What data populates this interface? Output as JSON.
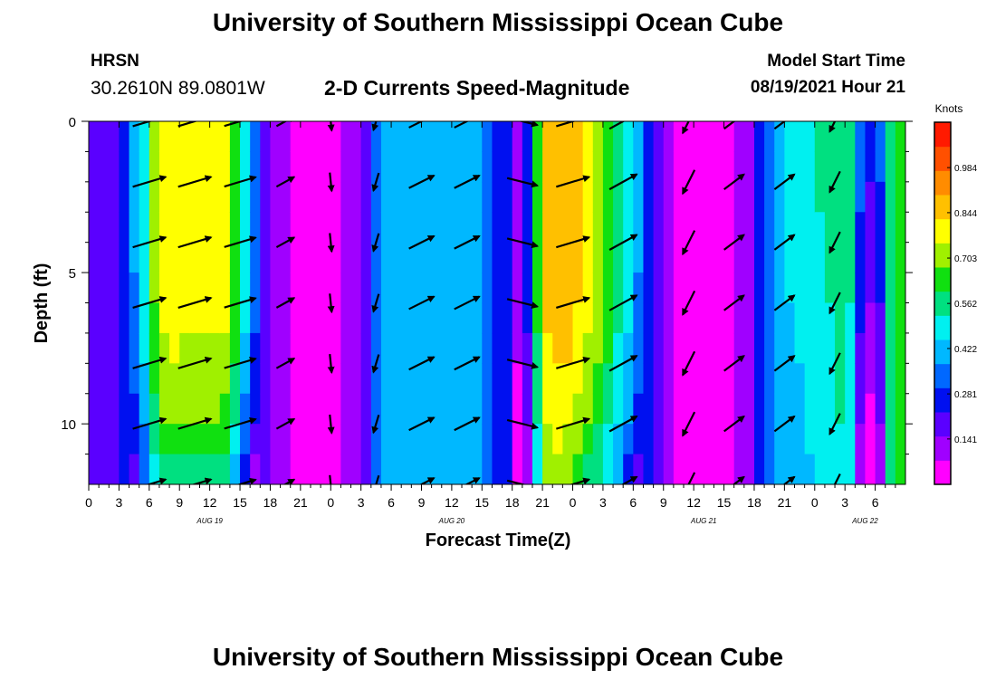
{
  "header": {
    "title": "University of Southern Mississippi Ocean Cube",
    "station": "HRSN",
    "coords": "30.2610N  89.0801W",
    "subtitle": "2-D Currents Speed-Magnitude",
    "model_start_label": "Model Start Time",
    "model_start_value": "08/19/2021 Hour 21"
  },
  "footer": {
    "title": "University of Southern Mississippi Ocean Cube"
  },
  "chart_data": {
    "type": "heatmap",
    "title": "2-D Currents Speed-Magnitude",
    "xlabel": "Forecast Time(Z)",
    "ylabel": "Depth (ft)",
    "x_hours_range": [
      0,
      81
    ],
    "x_origin": "Aug 19 00Z",
    "x_tick_labels": [
      "0",
      "3",
      "6",
      "9",
      "12",
      "15",
      "18",
      "21",
      "0",
      "3",
      "6",
      "9",
      "12",
      "15",
      "18",
      "21",
      "0",
      "3",
      "6",
      "9",
      "12",
      "15",
      "18",
      "21",
      "0",
      "3",
      "6"
    ],
    "x_day_labels": [
      {
        "text": "AUG 19",
        "hour": 12
      },
      {
        "text": "AUG 20",
        "hour": 36
      },
      {
        "text": "AUG 21",
        "hour": 61
      },
      {
        "text": "AUG 22",
        "hour": 77
      }
    ],
    "y_range": [
      0,
      12
    ],
    "y_ticks": [
      0,
      5,
      10
    ],
    "y_tick_labels": [
      "0",
      "5",
      "10"
    ],
    "colorbar": {
      "title": "Knots",
      "range": [
        0,
        1.125
      ],
      "tick_values": [
        0.141,
        0.281,
        0.422,
        0.562,
        0.703,
        0.844,
        0.984
      ],
      "tick_labels": [
        "0.141",
        "0.281",
        "0.422",
        "0.562",
        "0.703",
        "0.844",
        "0.984"
      ]
    },
    "speed_profile": {
      "hours": [
        0,
        3,
        5,
        6,
        7,
        8,
        10,
        13,
        14,
        15,
        16,
        17,
        18,
        20,
        21,
        23,
        25,
        27,
        28,
        28.5,
        30,
        33,
        36,
        39,
        40,
        42,
        43,
        44,
        45,
        46,
        47,
        48,
        49,
        51,
        54,
        56,
        57,
        58,
        60,
        63,
        65,
        66,
        67,
        69,
        72,
        75,
        76,
        77,
        78,
        79,
        80,
        81
      ],
      "speeds": [
        0.17,
        0.22,
        0.45,
        0.6,
        0.8,
        0.82,
        0.8,
        0.8,
        0.78,
        0.55,
        0.43,
        0.28,
        0.13,
        0.08,
        0.06,
        0.04,
        0.08,
        0.1,
        0.22,
        0.35,
        0.4,
        0.43,
        0.45,
        0.4,
        0.32,
        0.2,
        0.1,
        0.45,
        0.85,
        0.9,
        0.9,
        0.88,
        0.82,
        0.7,
        0.45,
        0.2,
        0.1,
        0.07,
        0.06,
        0.06,
        0.08,
        0.18,
        0.3,
        0.4,
        0.45,
        0.52,
        0.45,
        0.28,
        0.25,
        0.45,
        0.6,
        0.7
      ]
    },
    "arrows": {
      "rows_depth": [
        0,
        2,
        4,
        6,
        8,
        10,
        12
      ],
      "columns": [
        {
          "hour": 6,
          "u": 1,
          "v": 0.3,
          "speed": 0.82
        },
        {
          "hour": 10.5,
          "u": 1,
          "v": 0.3,
          "speed": 0.82
        },
        {
          "hour": 15,
          "u": 1,
          "v": 0.3,
          "speed": 0.75
        },
        {
          "hour": 19.5,
          "u": 1,
          "v": 0.55,
          "speed": 0.35
        },
        {
          "hour": 24,
          "u": 0.1,
          "v": -1,
          "speed": 0.3
        },
        {
          "hour": 28.5,
          "u": -0.3,
          "v": -1,
          "speed": 0.3
        },
        {
          "hour": 33,
          "u": 1,
          "v": 0.5,
          "speed": 0.6
        },
        {
          "hour": 37.5,
          "u": 1,
          "v": 0.5,
          "speed": 0.6
        },
        {
          "hour": 43,
          "u": 1,
          "v": -0.25,
          "speed": 0.7
        },
        {
          "hour": 48,
          "u": 1,
          "v": 0.3,
          "speed": 0.82
        },
        {
          "hour": 53,
          "u": 1,
          "v": 0.55,
          "speed": 0.7
        },
        {
          "hour": 59.5,
          "u": -0.5,
          "v": -1,
          "speed": 0.55
        },
        {
          "hour": 64,
          "u": 1,
          "v": 0.75,
          "speed": 0.5
        },
        {
          "hour": 69,
          "u": 1,
          "v": 0.75,
          "speed": 0.5
        },
        {
          "hour": 74,
          "u": -0.5,
          "v": -1,
          "speed": 0.45
        }
      ]
    }
  },
  "colors": {
    "background": "#ffffff",
    "text": "#000000",
    "arrow": "#000000",
    "speed_colormap": [
      "#ff00ff",
      "#a000ff",
      "#5a00ff",
      "#0010f0",
      "#0068ff",
      "#00b8ff",
      "#00f0f0",
      "#00e080",
      "#10e010",
      "#a0f000",
      "#ffff00",
      "#ffc000",
      "#ff8c00",
      "#ff5000",
      "#ff1a00"
    ]
  }
}
